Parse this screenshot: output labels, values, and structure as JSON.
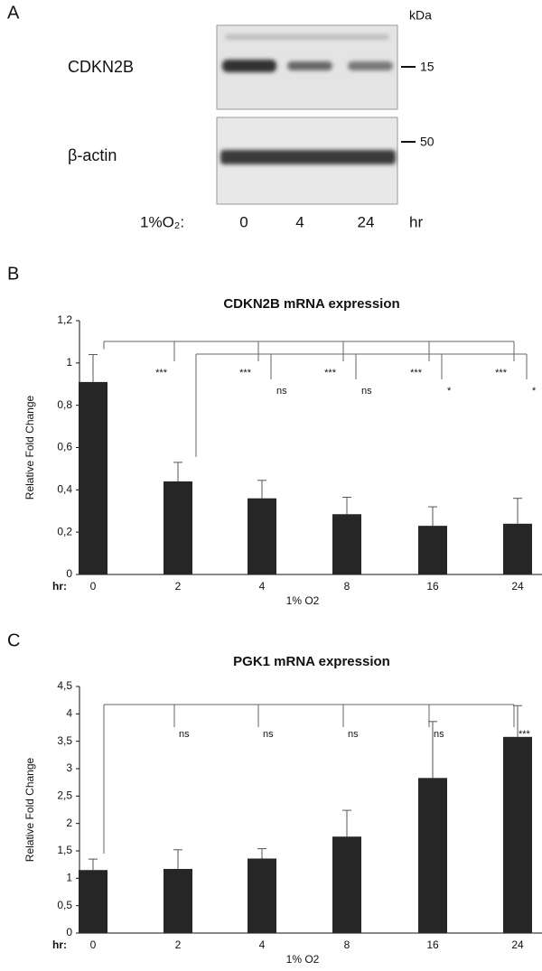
{
  "panel_a": {
    "label": "A",
    "unit": "kDa",
    "rows": [
      {
        "name": "CDKN2B",
        "marker": "15"
      },
      {
        "name": "β-actin",
        "marker": "50"
      }
    ],
    "condition": "1%O₂:",
    "lanes": [
      "0",
      "4",
      "24"
    ],
    "lane_unit": "hr"
  },
  "chart_data": [
    {
      "type": "bar",
      "panel": "B",
      "title": "CDKN2B mRNA expression",
      "y_label": "Relative Fold Change",
      "x_label": "1% O2",
      "x_prefix": "hr:",
      "categories": [
        "0",
        "2",
        "4",
        "8",
        "16",
        "24"
      ],
      "values": [
        0.91,
        0.44,
        0.36,
        0.285,
        0.23,
        0.24
      ],
      "errors": [
        0.13,
        0.09,
        0.085,
        0.08,
        0.09,
        0.12
      ],
      "color": "#262626",
      "ylim": [
        0,
        1.2
      ],
      "yticks": [
        0,
        {
          "value": 0.2,
          "label": "0,2"
        },
        {
          "value": 0.4,
          "label": "0,4"
        },
        {
          "value": 0.6,
          "label": "0,6"
        },
        {
          "value": 0.8,
          "label": "0,8"
        },
        1,
        {
          "value": 1.2,
          "label": "1,2"
        }
      ],
      "comparisons": [
        {
          "labels": [
            null,
            "***",
            "***",
            "***",
            "***",
            "***"
          ]
        },
        {
          "labels": [
            null,
            null,
            "ns",
            "ns",
            "*",
            "*"
          ]
        }
      ]
    },
    {
      "type": "bar",
      "panel": "C",
      "title": "PGK1 mRNA expression",
      "y_label": "Relative Fold Change",
      "x_label": "1% O2",
      "x_prefix": "hr:",
      "categories": [
        "0",
        "2",
        "4",
        "8",
        "16",
        "24"
      ],
      "values": [
        1.15,
        1.17,
        1.36,
        1.76,
        2.83,
        3.58
      ],
      "errors": [
        0.2,
        0.35,
        0.18,
        0.48,
        1.03,
        0.57
      ],
      "color": "#262626",
      "ylim": [
        0,
        4.5
      ],
      "yticks": [
        0,
        {
          "value": 0.5,
          "label": "0,5"
        },
        1,
        {
          "value": 1.5,
          "label": "1,5"
        },
        2,
        {
          "value": 2.5,
          "label": "2,5"
        },
        3,
        {
          "value": 3.5,
          "label": "3,5"
        },
        4,
        {
          "value": 4.5,
          "label": "4,5"
        }
      ],
      "comparisons": [
        {
          "labels": [
            null,
            "ns",
            "ns",
            "ns",
            "ns",
            "***"
          ]
        }
      ]
    }
  ]
}
